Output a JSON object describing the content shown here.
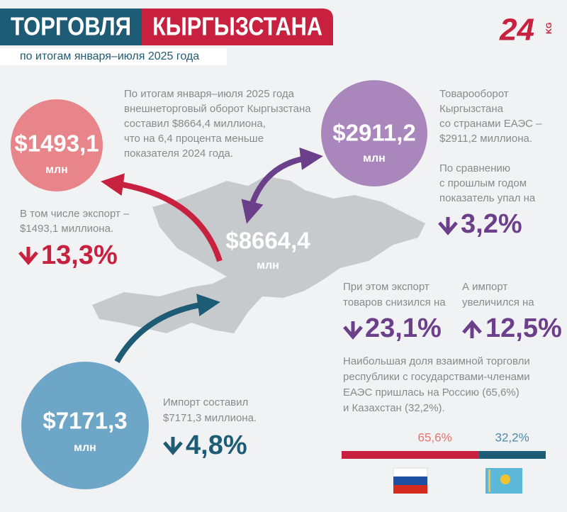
{
  "header": {
    "title_left": "ТОРГОВЛЯ",
    "title_right": "КЫРГЫЗСТАНА",
    "subtitle": "по итогам января–июля 2025 года",
    "logo": "24",
    "logo_suffix": "KG"
  },
  "total": {
    "value": "$8664,4",
    "unit": "млн",
    "text": [
      "По итогам января–июля 2025 года",
      "внешнеторговый оборот Кыргызстана",
      "составил $8664,4 миллиона,",
      "что на 6,4 процента меньше",
      "показателя 2024 года."
    ]
  },
  "export": {
    "value": "$1493,1",
    "unit": "млн",
    "text": [
      "В том числе экспорт –",
      "$1493,1 миллиона."
    ],
    "change": "13,3%"
  },
  "import": {
    "value": "$7171,3",
    "unit": "млн",
    "text": [
      "Импорт составил",
      "$7171,3 миллиона."
    ],
    "change": "4,8%"
  },
  "eaeu": {
    "value": "$2911,2",
    "unit": "млн",
    "text": [
      "Товарооборот",
      "Кыргызстана",
      "со странами ЕАЭС –",
      "$2911,2 миллиона."
    ],
    "note": [
      "По сравнению",
      "с прошлым годом",
      "показатель упал на"
    ],
    "change": "3,2%"
  },
  "eaeu_export": {
    "text": [
      "При этом экспорт",
      "товаров снизился на"
    ],
    "change": "23,1%"
  },
  "eaeu_import": {
    "text": [
      "А импорт",
      "увеличился на"
    ],
    "change": "12,5%"
  },
  "partners": {
    "text": [
      "Наибольшая доля взаимной торговли",
      "республики с государствами-членами",
      "ЕАЭС пришлась на Россию (65,6%)",
      "и Казахстан (32,2%)."
    ],
    "bar": [
      {
        "label": "65,6%",
        "value": 65.6,
        "color": "#c8203f",
        "label_color": "#e0736f"
      },
      {
        "label": "32,2%",
        "value": 32.2,
        "color": "#1e5b74",
        "label_color": "#4b8bab"
      }
    ]
  }
}
